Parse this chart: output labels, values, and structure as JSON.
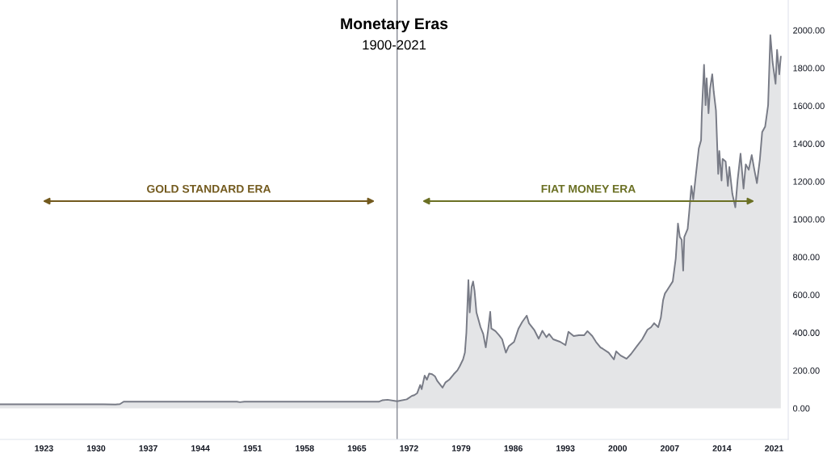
{
  "chart_data": {
    "type": "area",
    "title": "Monetary Eras",
    "subtitle": "1900-2021",
    "annotations": [
      "GOLD STANDARD ERA",
      "FIAT MONEY ERA"
    ],
    "x": [
      1917.1,
      1931.0,
      1932.6,
      1933.2,
      1933.7,
      1948.9,
      1949.3,
      1949.9,
      1968.0,
      1968.4,
      1969.13,
      1970.4,
      1971.7,
      1972.4,
      1972.7,
      1973.1,
      1973.5,
      1973.7,
      1974.1,
      1974.4,
      1974.7,
      1975.1,
      1975.5,
      1975.8,
      1976.5,
      1976.9,
      1977.4,
      1978.0,
      1978.5,
      1978.8,
      1979.25,
      1979.5,
      1979.7,
      1979.97,
      1980.15,
      1980.4,
      1980.6,
      1980.8,
      1981.05,
      1981.6,
      1981.96,
      1982.3,
      1982.6,
      1982.9,
      1983.05,
      1983.6,
      1984.1,
      1984.5,
      1985.0,
      1985.4,
      1986.1,
      1986.7,
      1987.2,
      1987.8,
      1988.1,
      1988.8,
      1989.4,
      1989.9,
      1990.45,
      1990.8,
      1991.35,
      1992.3,
      1993.0,
      1993.4,
      1994.1,
      1994.8,
      1995.5,
      1995.95,
      1996.6,
      1997.1,
      1997.7,
      1998.0,
      1998.8,
      1999.5,
      1999.8,
      2000.4,
      2001.2,
      2001.8,
      2002.6,
      2003.3,
      2004.0,
      2004.5,
      2004.9,
      2005.45,
      2005.8,
      2006.1,
      2006.35,
      2006.7,
      2007.4,
      2007.8,
      2008.1,
      2008.35,
      2008.6,
      2008.8,
      2008.95,
      2009.4,
      2009.6,
      2009.9,
      2010.15,
      2010.5,
      2010.9,
      2011.2,
      2011.3,
      2011.6,
      2011.8,
      2011.95,
      2012.2,
      2012.4,
      2012.7,
      2012.9,
      2013.2,
      2013.5,
      2013.65,
      2013.95,
      2014.1,
      2014.5,
      2014.8,
      2015.0,
      2015.4,
      2015.8,
      2016.1,
      2016.5,
      2016.9,
      2017.2,
      2017.6,
      2018.0,
      2018.35,
      2018.7,
      2019.1,
      2019.4,
      2019.8,
      2020.2,
      2020.5,
      2020.8,
      2021.2,
      2021.4,
      2021.7,
      2021.9
    ],
    "series": [
      {
        "color": "#787b86",
        "values": [
          21,
          21,
          20,
          22,
          35,
          35,
          32,
          35,
          35,
          42,
          45,
          37,
          47,
          66,
          69,
          80,
          123,
          101,
          173,
          151,
          183,
          180,
          168,
          144,
          109,
          137,
          151,
          180,
          201,
          222,
          258,
          294,
          400,
          678,
          507,
          642,
          671,
          621,
          507,
          429,
          393,
          322,
          408,
          510,
          422,
          408,
          386,
          365,
          294,
          329,
          351,
          422,
          457,
          490,
          450,
          415,
          368,
          410,
          376,
          393,
          365,
          351,
          334,
          405,
          382,
          386,
          386,
          408,
          382,
          351,
          322,
          315,
          294,
          258,
          301,
          279,
          262,
          287,
          329,
          365,
          415,
          429,
          450,
          429,
          479,
          571,
          607,
          628,
          671,
          792,
          977,
          906,
          892,
          728,
          906,
          949,
          1034,
          1176,
          1105,
          1233,
          1376,
          1418,
          1561,
          1817,
          1604,
          1746,
          1561,
          1689,
          1767,
          1675,
          1575,
          1240,
          1361,
          1205,
          1319,
          1305,
          1176,
          1276,
          1134,
          1063,
          1205,
          1347,
          1162,
          1290,
          1262,
          1340,
          1262,
          1191,
          1319,
          1461,
          1490,
          1604,
          1974,
          1831,
          1717,
          1896,
          1767,
          1860
        ]
      }
    ],
    "xlim": [
      1917.1,
      2022.9
    ],
    "xticks": [
      1923,
      1930,
      1937,
      1944,
      1951,
      1958,
      1965,
      1972,
      1979,
      1986,
      1993,
      2000,
      2007,
      2014,
      2021
    ],
    "ylim": [
      -165,
      2160
    ],
    "yticks": [
      {
        "value": 0,
        "label": "0.00"
      },
      {
        "value": 200,
        "label": "200.00"
      },
      {
        "value": 400,
        "label": "400.00"
      },
      {
        "value": 600,
        "label": "600.00"
      },
      {
        "value": 800,
        "label": "800.00"
      },
      {
        "value": 1000,
        "label": "1000.00"
      },
      {
        "value": 1200,
        "label": "1200.00"
      },
      {
        "value": 1400,
        "label": "1400.00"
      },
      {
        "value": 1600,
        "label": "1600.00"
      },
      {
        "value": 1800,
        "label": "1800.00"
      },
      {
        "value": 2000,
        "label": "2000.00"
      }
    ],
    "ref_lines": [
      {
        "axis": "x",
        "value": 1970.4,
        "color": "#868993"
      }
    ],
    "grid": false
  }
}
